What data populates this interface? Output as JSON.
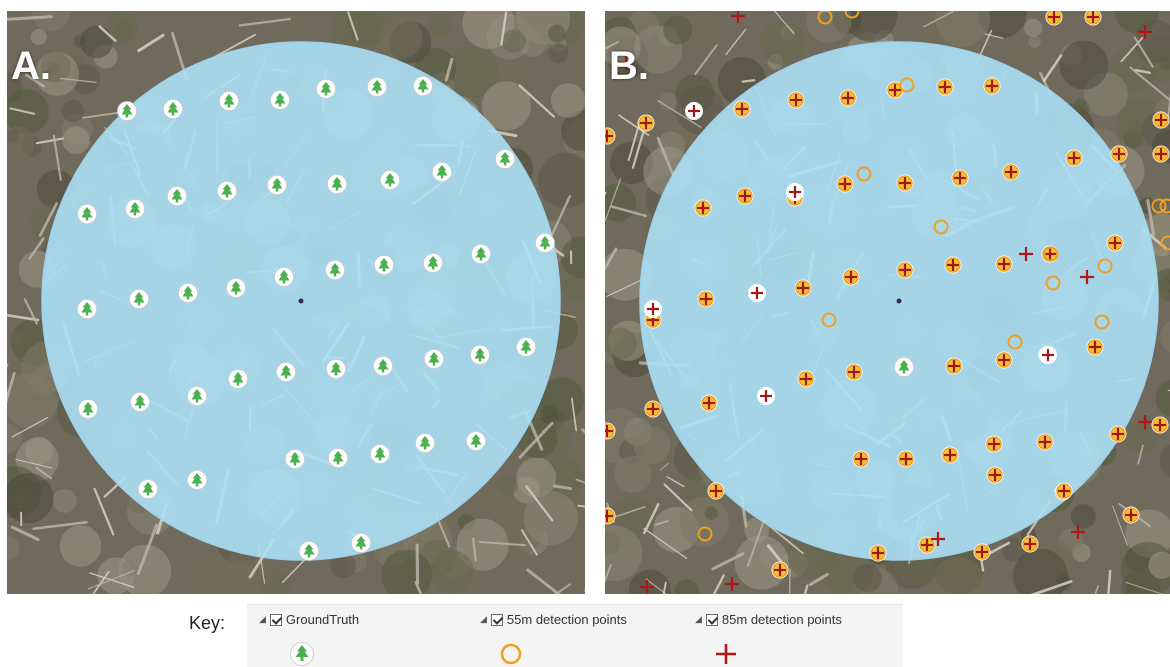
{
  "panels": {
    "a": {
      "label": "A."
    },
    "b": {
      "label": "B."
    }
  },
  "key": {
    "label": "Key:",
    "items": [
      {
        "name": "GroundTruth",
        "checked": true,
        "symbol": "tree-circle-icon"
      },
      {
        "name": "55m detection points",
        "checked": true,
        "symbol": "orange-circle-icon"
      },
      {
        "name": "85m detection points",
        "checked": true,
        "symbol": "red-cross-icon"
      }
    ]
  },
  "colors": {
    "plot_fill": "#a8d8f0",
    "ground_truth_tree": "#4caf50",
    "detection_55m": "#f0a020",
    "detection_85m": "#a01818"
  }
}
